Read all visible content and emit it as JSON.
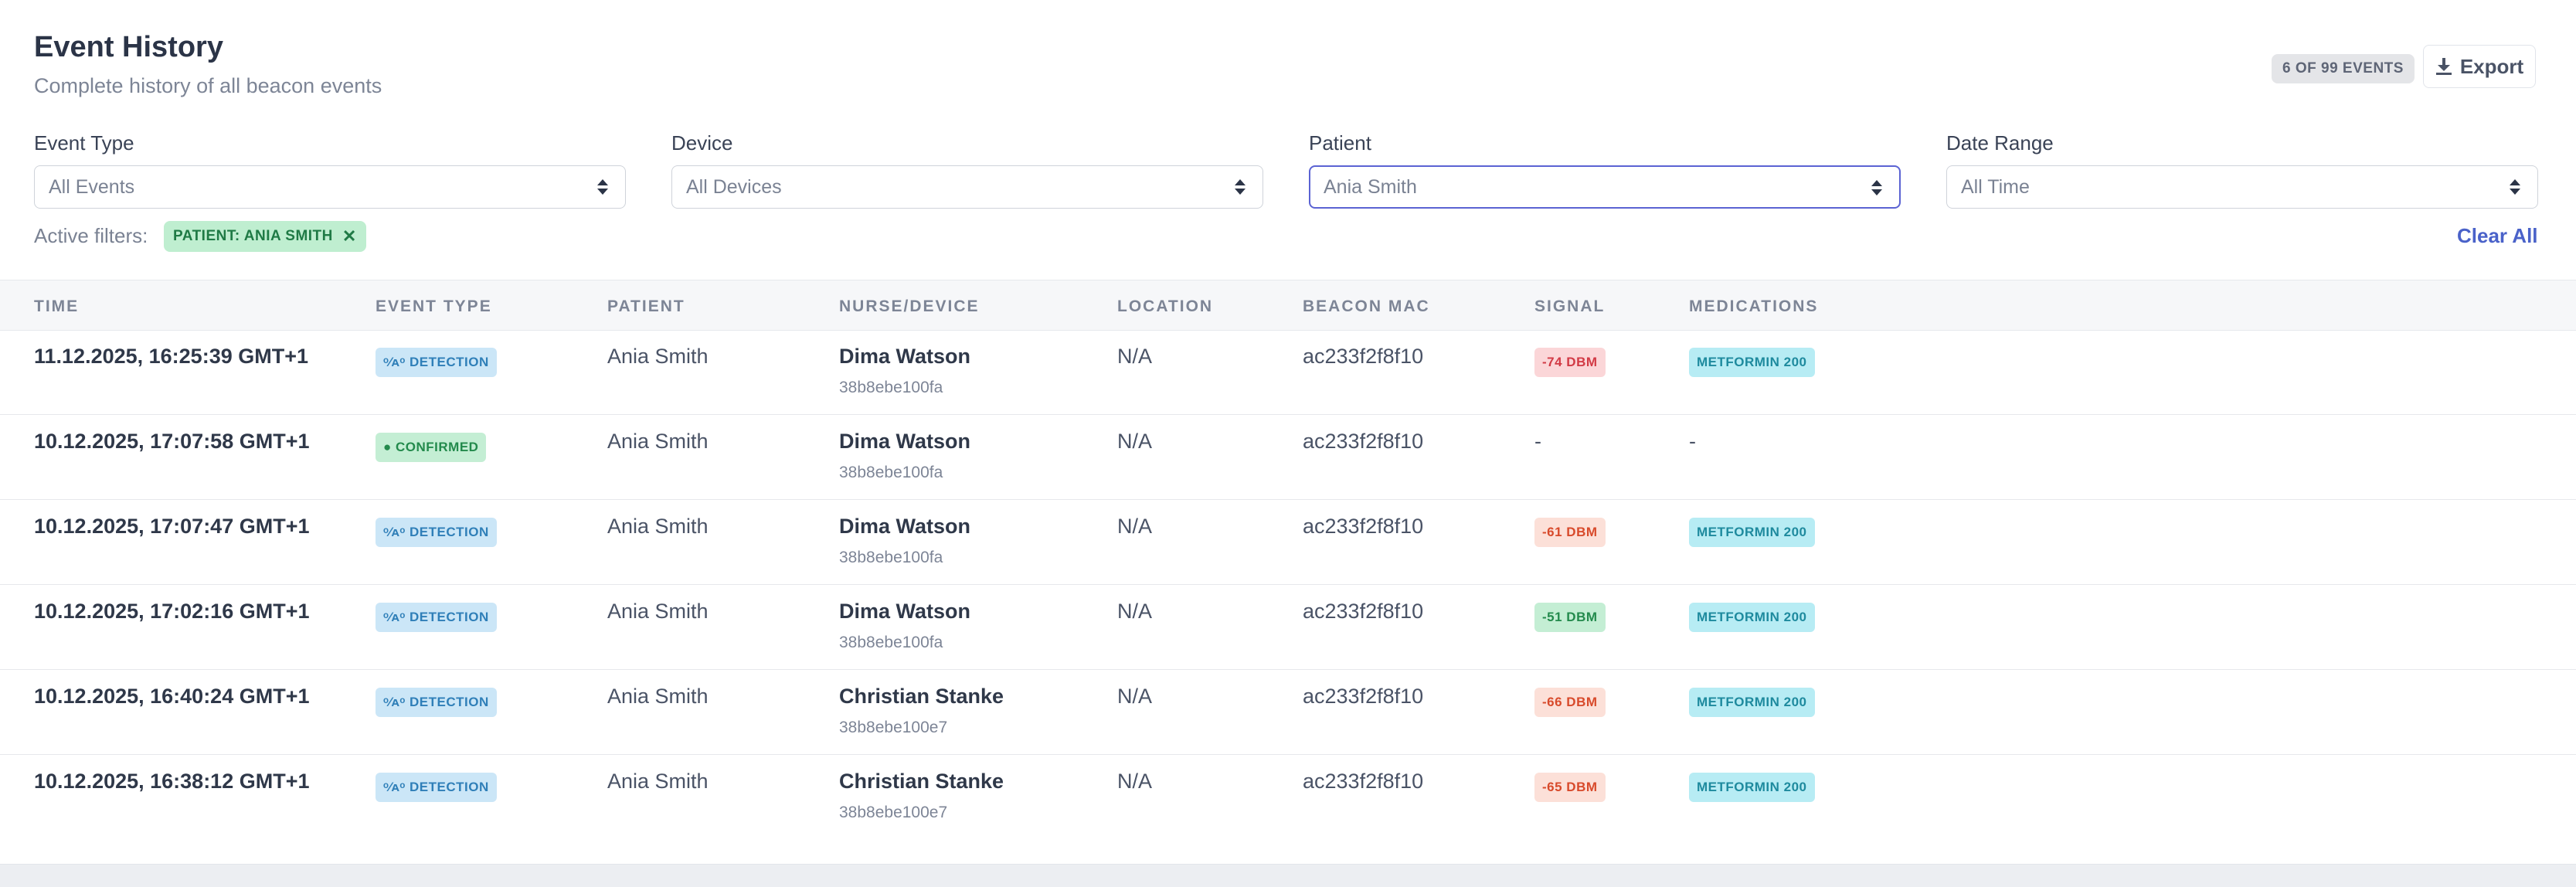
{
  "header": {
    "title": "Event History",
    "subtitle": "Complete history of all beacon events",
    "count_badge": "6 OF 99 EVENTS",
    "export_label": "Export"
  },
  "filters": {
    "event_type": {
      "label": "Event Type",
      "value": "All Events"
    },
    "device": {
      "label": "Device",
      "value": "All Devices"
    },
    "patient": {
      "label": "Patient",
      "value": "Ania Smith"
    },
    "date_range": {
      "label": "Date Range",
      "value": "All Time"
    },
    "active_label": "Active filters:",
    "active_chip": "PATIENT: ANIA SMITH",
    "clear_all": "Clear All"
  },
  "table": {
    "columns": [
      "TIME",
      "EVENT TYPE",
      "PATIENT",
      "NURSE/DEVICE",
      "LOCATION",
      "BEACON MAC",
      "SIGNAL",
      "MEDICATIONS"
    ],
    "rows": [
      {
        "time": "11.12.2025, 16:25:39 GMT+1",
        "event": "DETECTION",
        "event_kind": "detection",
        "patient": "Ania Smith",
        "nurse": "Dima Watson",
        "device": "38b8ebe100fa",
        "location": "N/A",
        "mac": "ac233f2f8f10",
        "signal": "-74 DBM",
        "signal_level": "red",
        "medication": "METFORMIN 200"
      },
      {
        "time": "10.12.2025, 17:07:58 GMT+1",
        "event": "CONFIRMED",
        "event_kind": "confirmed",
        "patient": "Ania Smith",
        "nurse": "Dima Watson",
        "device": "38b8ebe100fa",
        "location": "N/A",
        "mac": "ac233f2f8f10",
        "signal": "-",
        "signal_level": "none",
        "medication": "-"
      },
      {
        "time": "10.12.2025, 17:07:47 GMT+1",
        "event": "DETECTION",
        "event_kind": "detection",
        "patient": "Ania Smith",
        "nurse": "Dima Watson",
        "device": "38b8ebe100fa",
        "location": "N/A",
        "mac": "ac233f2f8f10",
        "signal": "-61 DBM",
        "signal_level": "orange",
        "medication": "METFORMIN 200"
      },
      {
        "time": "10.12.2025, 17:02:16 GMT+1",
        "event": "DETECTION",
        "event_kind": "detection",
        "patient": "Ania Smith",
        "nurse": "Dima Watson",
        "device": "38b8ebe100fa",
        "location": "N/A",
        "mac": "ac233f2f8f10",
        "signal": "-51 DBM",
        "signal_level": "green",
        "medication": "METFORMIN 200"
      },
      {
        "time": "10.12.2025, 16:40:24 GMT+1",
        "event": "DETECTION",
        "event_kind": "detection",
        "patient": "Ania Smith",
        "nurse": "Christian Stanke",
        "device": "38b8ebe100e7",
        "location": "N/A",
        "mac": "ac233f2f8f10",
        "signal": "-66 DBM",
        "signal_level": "orange",
        "medication": "METFORMIN 200"
      },
      {
        "time": "10.12.2025, 16:38:12 GMT+1",
        "event": "DETECTION",
        "event_kind": "detection",
        "patient": "Ania Smith",
        "nurse": "Christian Stanke",
        "device": "38b8ebe100e7",
        "location": "N/A",
        "mac": "ac233f2f8f10",
        "signal": "-65 DBM",
        "signal_level": "orange",
        "medication": "METFORMIN 200"
      }
    ]
  },
  "colors": {
    "accent": "#4a62c9",
    "focus_border": "#5b63d3"
  }
}
